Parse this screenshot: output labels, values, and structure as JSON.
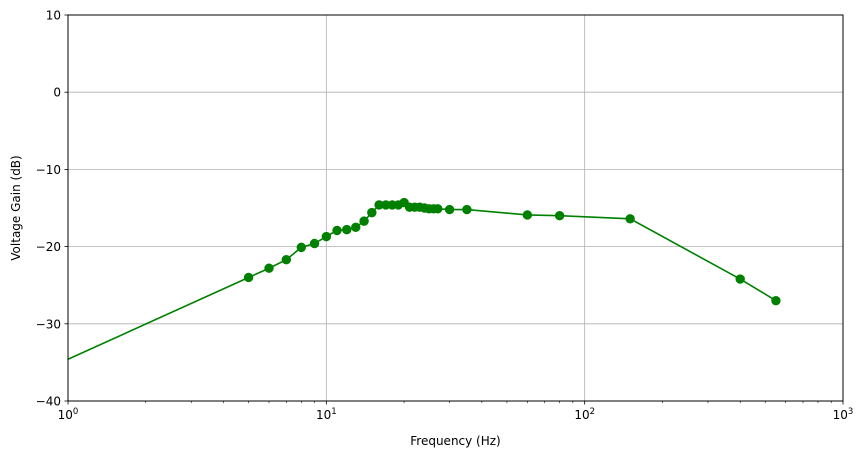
{
  "chart_data": {
    "type": "line",
    "xscale": "log",
    "xlabel": "Frequency (Hz)",
    "ylabel": "Voltage Gain (dB)",
    "xlim": [
      1,
      1000
    ],
    "ylim": [
      -40,
      10
    ],
    "grid": true,
    "color": "#008000",
    "marker": "circle",
    "x_ticks": [
      {
        "value": 1,
        "base": "10",
        "exp": "0"
      },
      {
        "value": 10,
        "base": "10",
        "exp": "1"
      },
      {
        "value": 100,
        "base": "10",
        "exp": "2"
      },
      {
        "value": 1000,
        "base": "10",
        "exp": "3"
      }
    ],
    "y_ticks": [
      {
        "value": 10,
        "label": "10"
      },
      {
        "value": 0,
        "label": "0"
      },
      {
        "value": -10,
        "label": "−10"
      },
      {
        "value": -20,
        "label": "−20"
      },
      {
        "value": -30,
        "label": "−30"
      },
      {
        "value": -40,
        "label": "−40"
      }
    ],
    "series": [
      {
        "x": [
          5,
          6,
          7,
          8,
          9,
          10,
          11,
          12,
          13,
          14,
          15,
          16,
          17,
          18,
          19,
          20,
          21,
          22,
          23,
          24,
          25,
          26,
          27,
          30,
          35,
          60,
          80,
          150,
          400,
          550
        ],
        "y": [
          -24.0,
          -22.8,
          -21.7,
          -20.1,
          -19.6,
          -18.7,
          -17.9,
          -17.8,
          -17.5,
          -16.7,
          -15.6,
          -14.6,
          -14.6,
          -14.6,
          -14.6,
          -14.3,
          -14.9,
          -14.9,
          -14.9,
          -15.0,
          -15.1,
          -15.1,
          -15.1,
          -15.2,
          -15.2,
          -15.9,
          -16.0,
          -16.4,
          -24.2,
          -27.0
        ]
      }
    ]
  }
}
